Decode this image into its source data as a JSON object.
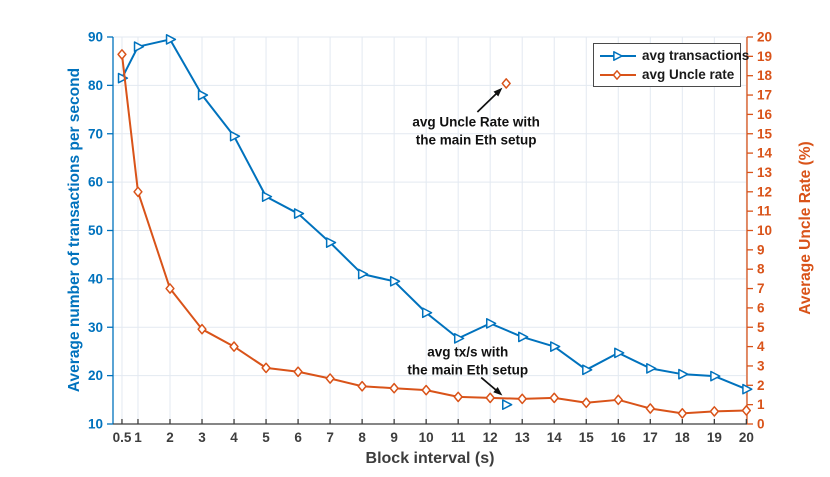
{
  "chart_data": {
    "type": "line",
    "title": "",
    "xlabel": "Block interval (s)",
    "ylabel_left": "Average number of transactions per second",
    "ylabel_right": "Average Uncle Rate (%)",
    "x": [
      0.5,
      1,
      2,
      3,
      4,
      5,
      6,
      7,
      8,
      9,
      10,
      11,
      12,
      13,
      14,
      15,
      16,
      17,
      18,
      19,
      20
    ],
    "xtick_labels": [
      "0.5",
      "1",
      "2",
      "3",
      "4",
      "5",
      "6",
      "7",
      "8",
      "9",
      "10",
      "11",
      "12",
      "13",
      "14",
      "15",
      "16",
      "17",
      "18",
      "19",
      "20"
    ],
    "series": [
      {
        "name": "avg transactions",
        "axis": "left",
        "color": "#0072BD",
        "marker": "triangle-right",
        "values": [
          81.5,
          88,
          89.5,
          78,
          69.5,
          57,
          53.5,
          47.5,
          41,
          39.5,
          33,
          27.7,
          30.8,
          28,
          26,
          21.2,
          24.7,
          21.5,
          20.3,
          19.9,
          17.2
        ]
      },
      {
        "name": "avg Uncle rate",
        "axis": "right",
        "color": "#D95319",
        "marker": "diamond",
        "values": [
          19.1,
          12,
          7,
          4.9,
          4,
          2.9,
          2.7,
          2.35,
          1.95,
          1.85,
          1.75,
          1.4,
          1.35,
          1.3,
          1.35,
          1.1,
          1.25,
          0.8,
          0.55,
          0.65,
          0.7
        ]
      }
    ],
    "isolated_points": [
      {
        "label": "avg Uncle Rate with the main Eth setup",
        "x": 12.5,
        "value": 17.6,
        "axis": "right",
        "marker": "diamond",
        "color": "#D95319"
      },
      {
        "label": "avg tx/s with the main Eth setup",
        "x": 12.5,
        "value": 14,
        "axis": "left",
        "marker": "triangle-right",
        "color": "#0072BD"
      }
    ],
    "annotations": [
      {
        "lines": [
          "avg Uncle Rate with",
          "the main Eth setup"
        ],
        "text_at": {
          "x": 11.56,
          "y_left": 70.5
        },
        "arrow": {
          "from": {
            "x": 11.6,
            "y_left": 74.5
          },
          "to": {
            "x": 12.38,
            "y_left": 79.5
          }
        }
      },
      {
        "lines": [
          "avg tx/s with",
          "the main Eth setup"
        ],
        "text_at": {
          "x": 11.3,
          "y_left": 23.0
        },
        "arrow": {
          "from": {
            "x": 11.72,
            "y_left": 19.6
          },
          "to": {
            "x": 12.38,
            "y_left": 15.9
          }
        }
      }
    ],
    "xlim": [
      0.22,
      20.02
    ],
    "ylim_left": [
      10,
      90
    ],
    "ylim_right": [
      0,
      20
    ],
    "yticks_left": [
      10,
      20,
      30,
      40,
      50,
      60,
      70,
      80,
      90
    ],
    "yticks_right": [
      0,
      1,
      2,
      3,
      4,
      5,
      6,
      7,
      8,
      9,
      10,
      11,
      12,
      13,
      14,
      15,
      16,
      17,
      18,
      19,
      20
    ],
    "grid": true,
    "legend_position": "top-right",
    "colors": {
      "grid": "#e3e9f1",
      "axis_x": "#3d3d3d",
      "annotation": "#111111",
      "background": "#ffffff"
    }
  }
}
